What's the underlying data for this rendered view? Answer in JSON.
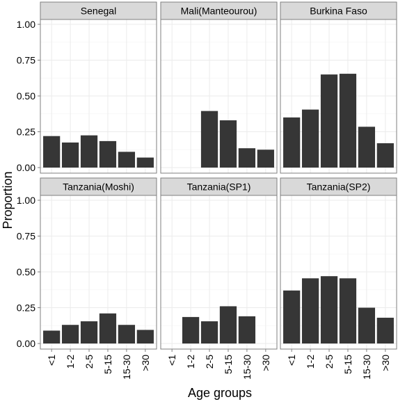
{
  "chart_data": {
    "type": "bar",
    "facets": [
      {
        "title": "Senegal",
        "values": [
          0.22,
          0.175,
          0.225,
          0.185,
          0.11,
          0.07
        ]
      },
      {
        "title": "Mali(Manteourou)",
        "values": [
          null,
          null,
          0.395,
          0.33,
          0.135,
          0.125
        ]
      },
      {
        "title": "Burkina Faso",
        "values": [
          0.35,
          0.405,
          0.65,
          0.655,
          0.285,
          0.17
        ]
      },
      {
        "title": "Tanzania(Moshi)",
        "values": [
          0.09,
          0.13,
          0.155,
          0.21,
          0.13,
          0.095
        ]
      },
      {
        "title": "Tanzania(SP1)",
        "values": [
          null,
          0.185,
          0.155,
          0.26,
          0.19,
          null
        ]
      },
      {
        "title": "Tanzania(SP2)",
        "values": [
          0.37,
          0.455,
          0.47,
          0.455,
          0.25,
          0.18
        ]
      }
    ],
    "categories": [
      "<1",
      "1-2",
      "2-5",
      "5-15",
      "15-30",
      ">30"
    ],
    "ylim": [
      0,
      1.0
    ],
    "yticks": [
      "0.00",
      "0.25",
      "0.50",
      "0.75",
      "1.00"
    ],
    "ytick_values": [
      0,
      0.25,
      0.5,
      0.75,
      1.0
    ],
    "xlabel": "Age groups",
    "ylabel": "Proportion",
    "grid": true,
    "bar_color": "#363636",
    "panel_border_color": "#7f7f7f",
    "strip_fill": "#d9d9d9",
    "grid_color": "#ebebeb"
  }
}
